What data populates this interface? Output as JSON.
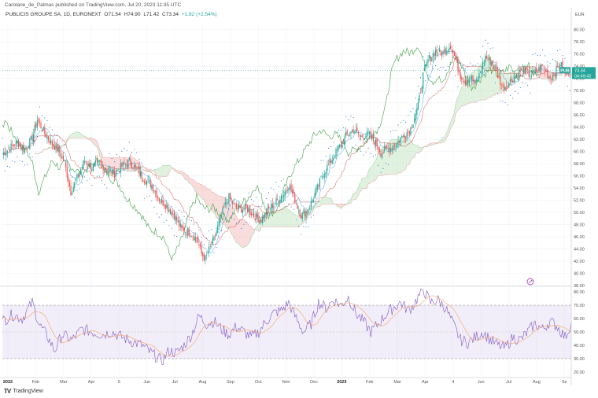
{
  "header": {
    "published": "Carolane_de_Palmas published on TradingView.com, Jul 20, 2023 11:35 UTC",
    "symbol": "PUBLICIS GROUPE SA, 1D, EURONEXT",
    "ohlc": {
      "o": "O71.54",
      "h": "H74.90",
      "l": "L71.42",
      "c": "C73.34",
      "change": "+1.82 (+2.54%)"
    }
  },
  "chart_data": {
    "type": "candlestick",
    "title": "PUBLICIS GROUPE SA, 1D, EURONEXT",
    "currency": "EUR",
    "price_axis": {
      "range": [
        38,
        81
      ],
      "ticks": [
        "80.00",
        "78.00",
        "76.00",
        "74.00",
        "72.00",
        "70.00",
        "68.00",
        "66.00",
        "64.00",
        "62.00",
        "60.00",
        "58.00",
        "56.00",
        "54.00",
        "52.00",
        "50.00",
        "48.00",
        "46.00",
        "44.00",
        "42.00",
        "40.00",
        "38.00"
      ]
    },
    "rsi_axis": {
      "range": [
        17,
        83
      ],
      "ticks": [
        "80.00",
        "70.00",
        "60.00",
        "50.00",
        "40.00",
        "30.00",
        "20.00"
      ],
      "band": [
        30,
        70
      ]
    },
    "time_labels": [
      "2022",
      "Feb",
      "Mar",
      "Apr",
      "5",
      "Jun",
      "Jul",
      "Aug",
      "Sep",
      "Oct",
      "Nov",
      "Dec",
      "2023",
      "Feb",
      "Mar",
      "Apr",
      "4",
      "Jun",
      "Jul",
      "Aug",
      "Se"
    ],
    "last_price": {
      "ticker": "PUB",
      "price": "73.34",
      "countdown": "04:49:42"
    },
    "price_path": [
      [
        0,
        59.6
      ],
      [
        6,
        60.6
      ],
      [
        12,
        61.5
      ],
      [
        18,
        60.3
      ],
      [
        24,
        62.2
      ],
      [
        28,
        65.2
      ],
      [
        34,
        63
      ],
      [
        40,
        61.2
      ],
      [
        45,
        60.2
      ],
      [
        50,
        58.2
      ],
      [
        55,
        53.4
      ],
      [
        60,
        55.6
      ],
      [
        66,
        58.5
      ],
      [
        72,
        57.4
      ],
      [
        78,
        58.2
      ],
      [
        84,
        57
      ],
      [
        90,
        56.4
      ],
      [
        96,
        57.5
      ],
      [
        102,
        58.4
      ],
      [
        108,
        57
      ],
      [
        114,
        55.5
      ],
      [
        120,
        54.5
      ],
      [
        126,
        52.2
      ],
      [
        132,
        51.1
      ],
      [
        138,
        49.5
      ],
      [
        144,
        47.2
      ],
      [
        150,
        46.8
      ],
      [
        156,
        45.8
      ],
      [
        160,
        43.2
      ],
      [
        163,
        42.4
      ],
      [
        166,
        43.8
      ],
      [
        170,
        45.5
      ],
      [
        174,
        48.2
      ],
      [
        178,
        50.8
      ],
      [
        182,
        52.5
      ],
      [
        186,
        51.1
      ],
      [
        190,
        50.5
      ],
      [
        196,
        50.8
      ],
      [
        202,
        49.5
      ],
      [
        208,
        48.8
      ],
      [
        214,
        50.5
      ],
      [
        220,
        51.8
      ],
      [
        226,
        53
      ],
      [
        230,
        54.6
      ],
      [
        236,
        51.5
      ],
      [
        240,
        49.5
      ],
      [
        246,
        50.5
      ],
      [
        252,
        53.5
      ],
      [
        258,
        56.5
      ],
      [
        264,
        58.5
      ],
      [
        270,
        60.5
      ],
      [
        276,
        62.5
      ],
      [
        282,
        63.5
      ],
      [
        288,
        62.5
      ],
      [
        294,
        62.8
      ],
      [
        300,
        61.5
      ],
      [
        304,
        59.8
      ],
      [
        310,
        60.4
      ],
      [
        316,
        61.2
      ],
      [
        322,
        62.5
      ],
      [
        328,
        63.8
      ],
      [
        334,
        67.5
      ],
      [
        338,
        72.5
      ],
      [
        342,
        75
      ],
      [
        348,
        76.5
      ],
      [
        354,
        76.2
      ],
      [
        360,
        77.5
      ],
      [
        364,
        75
      ],
      [
        368,
        72.5
      ],
      [
        372,
        71.5
      ],
      [
        376,
        72.2
      ],
      [
        380,
        71
      ],
      [
        384,
        73
      ],
      [
        388,
        75.5
      ],
      [
        394,
        74.5
      ],
      [
        398,
        72.5
      ],
      [
        402,
        70.5
      ],
      [
        406,
        71
      ],
      [
        412,
        72.5
      ],
      [
        418,
        73.5
      ],
      [
        424,
        72.5
      ],
      [
        428,
        73
      ],
      [
        434,
        74
      ],
      [
        440,
        72
      ],
      [
        444,
        73
      ],
      [
        448,
        74.5
      ],
      [
        452,
        72.5
      ],
      [
        457,
        73.34
      ]
    ],
    "rsi_path": [
      [
        0,
        58
      ],
      [
        8,
        63
      ],
      [
        16,
        60
      ],
      [
        24,
        72
      ],
      [
        30,
        55
      ],
      [
        36,
        47
      ],
      [
        42,
        36
      ],
      [
        48,
        48
      ],
      [
        56,
        44
      ],
      [
        64,
        52
      ],
      [
        72,
        50
      ],
      [
        80,
        48
      ],
      [
        88,
        50
      ],
      [
        96,
        46
      ],
      [
        104,
        43
      ],
      [
        112,
        40
      ],
      [
        120,
        34
      ],
      [
        128,
        28
      ],
      [
        134,
        36
      ],
      [
        140,
        34
      ],
      [
        146,
        40
      ],
      [
        152,
        48
      ],
      [
        158,
        62
      ],
      [
        164,
        56
      ],
      [
        170,
        58
      ],
      [
        176,
        52
      ],
      [
        182,
        48
      ],
      [
        188,
        54
      ],
      [
        194,
        50
      ],
      [
        200,
        46
      ],
      [
        206,
        50
      ],
      [
        212,
        58
      ],
      [
        218,
        64
      ],
      [
        224,
        66
      ],
      [
        230,
        72
      ],
      [
        236,
        60
      ],
      [
        242,
        50
      ],
      [
        248,
        56
      ],
      [
        254,
        72
      ],
      [
        260,
        68
      ],
      [
        266,
        74
      ],
      [
        272,
        70
      ],
      [
        278,
        76
      ],
      [
        284,
        64
      ],
      [
        290,
        58
      ],
      [
        296,
        50
      ],
      [
        302,
        56
      ],
      [
        308,
        63
      ],
      [
        314,
        68
      ],
      [
        320,
        72
      ],
      [
        326,
        66
      ],
      [
        330,
        70
      ],
      [
        334,
        76
      ],
      [
        338,
        82
      ],
      [
        344,
        72
      ],
      [
        350,
        74
      ],
      [
        356,
        68
      ],
      [
        362,
        56
      ],
      [
        368,
        44
      ],
      [
        374,
        42
      ],
      [
        380,
        46
      ],
      [
        386,
        50
      ],
      [
        392,
        44
      ],
      [
        398,
        40
      ],
      [
        404,
        38
      ],
      [
        410,
        46
      ],
      [
        416,
        44
      ],
      [
        422,
        50
      ],
      [
        428,
        56
      ],
      [
        434,
        52
      ],
      [
        440,
        58
      ],
      [
        446,
        54
      ],
      [
        452,
        46
      ],
      [
        457,
        56
      ]
    ]
  },
  "footer": {
    "brand": "TradingView"
  }
}
